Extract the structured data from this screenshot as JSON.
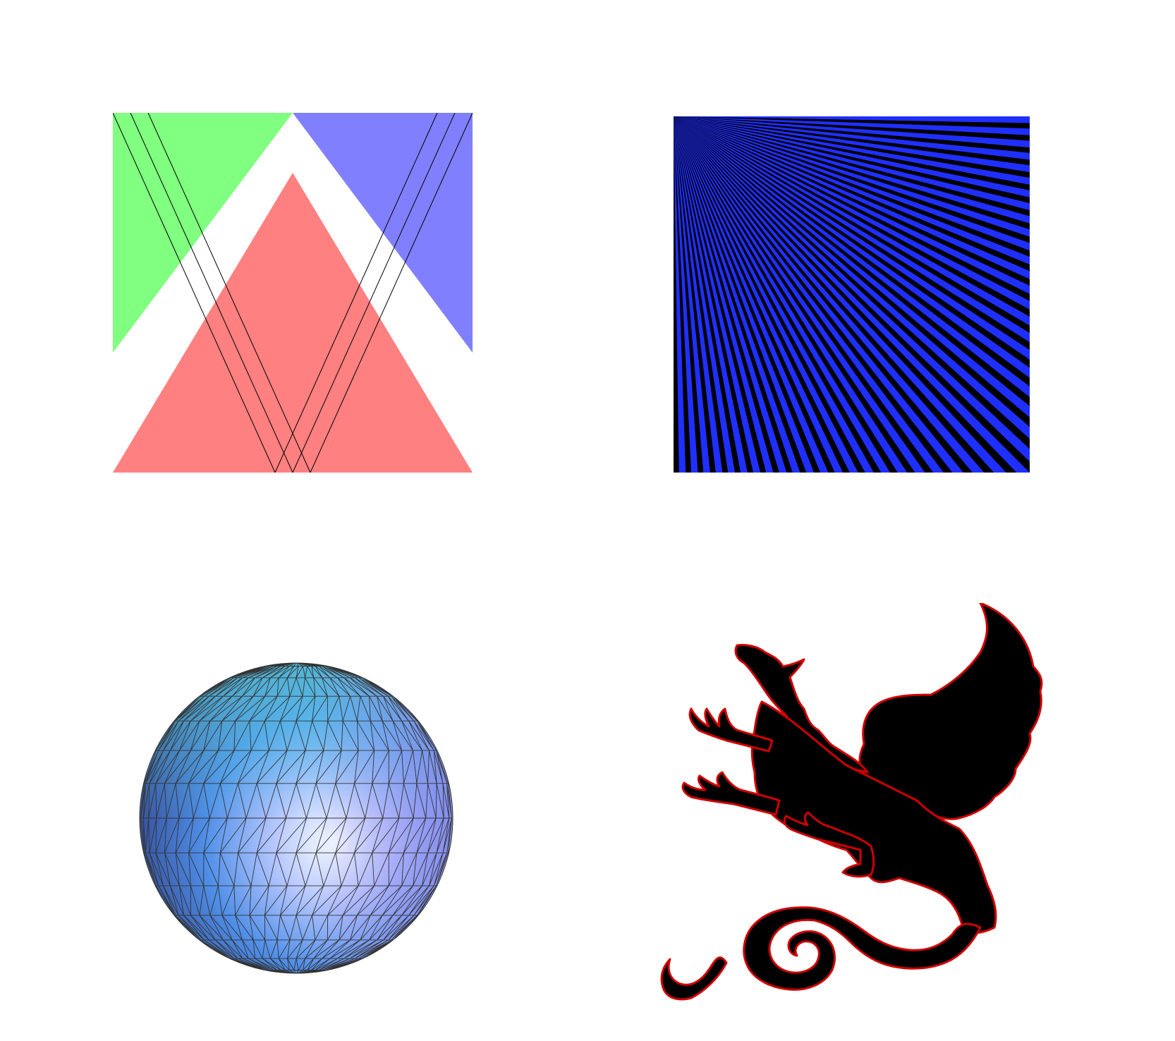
{
  "panels": [
    {
      "name": "triangles",
      "icon": "overlapping-triangles-figure"
    },
    {
      "name": "stripes",
      "icon": "radial-stripes-figure"
    },
    {
      "name": "sphere",
      "icon": "triangulated-sphere-figure"
    },
    {
      "name": "dragon",
      "icon": "dragon-silhouette-figure"
    }
  ],
  "colors": {
    "green": "#80ff80",
    "blue": "#8080ff",
    "red": "#ff8080",
    "stripe_blue": "#1f2fff",
    "stripe_dark": "#000000",
    "dragon_fill": "#000000",
    "dragon_outline": "#d00000",
    "sphere_cyan": "#5fe0ea",
    "sphere_blue": "#4f8fe8",
    "sphere_violet": "#9a8cf0",
    "sphere_white": "#f8ffff"
  }
}
